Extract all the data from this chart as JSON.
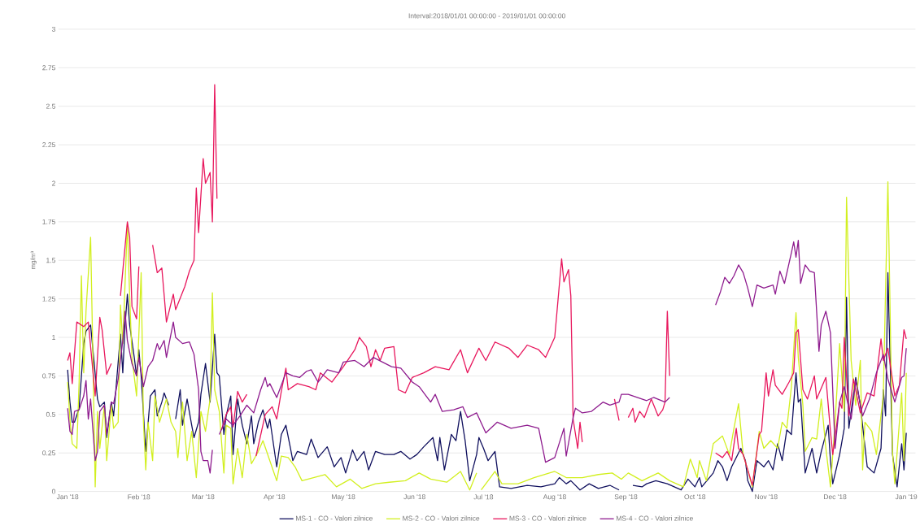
{
  "chart_data": {
    "type": "line",
    "title": "Interval:2018/01/01 00:00:00 - 2019/01/01 00:00:00",
    "ylabel": "mg/m³",
    "xlim": [
      "2017-12-28",
      "2019-01-05"
    ],
    "ylim": [
      0,
      3
    ],
    "xticks": [
      {
        "value": "2018-01-01",
        "label": "Jan '18"
      },
      {
        "value": "2018-02-01",
        "label": "Feb '18"
      },
      {
        "value": "2018-03-01",
        "label": "Mar '18"
      },
      {
        "value": "2018-04-01",
        "label": "Apr '18"
      },
      {
        "value": "2018-05-01",
        "label": "May '18"
      },
      {
        "value": "2018-06-01",
        "label": "Jun '18"
      },
      {
        "value": "2018-07-01",
        "label": "Jul '18"
      },
      {
        "value": "2018-08-01",
        "label": "Aug '18"
      },
      {
        "value": "2018-09-01",
        "label": "Sep '18"
      },
      {
        "value": "2018-10-01",
        "label": "Oct '18"
      },
      {
        "value": "2018-11-01",
        "label": "Nov '18"
      },
      {
        "value": "2018-12-01",
        "label": "Dec '18"
      },
      {
        "value": "2019-01-01",
        "label": "Jan '19"
      }
    ],
    "yticks": [
      0,
      0.25,
      0.5,
      0.75,
      1,
      1.25,
      1.5,
      1.75,
      2,
      2.25,
      2.5,
      2.75,
      3
    ],
    "grid": "y",
    "legend": "bottom",
    "series": [
      {
        "name": "MS-1 - CO - Valori zilnice",
        "color": "#10105e",
        "x": [
          "2018-01-01",
          "2018-01-02",
          "2018-01-03",
          "2018-01-04",
          "2018-01-06",
          "2018-01-08",
          "2018-01-09",
          "2018-01-11",
          "2018-01-14",
          "2018-01-15",
          "2018-01-17",
          "2018-01-18",
          "2018-01-20",
          "2018-01-21",
          "2018-01-22",
          "2018-01-24",
          "2018-01-25",
          "2018-01-26",
          "2018-01-27",
          "2018-01-28",
          "2018-01-30",
          "2018-01-31",
          "2018-02-01",
          "2018-02-02",
          "2018-02-04",
          "2018-02-06",
          "2018-02-08",
          "2018-02-09",
          "2018-02-11",
          "2018-02-12",
          "2018-02-14",
          "2018-02-15",
          "2018-02-17",
          "2018-02-19",
          "2018-02-20",
          "2018-02-22",
          "2018-02-24",
          "2018-02-25",
          "2018-02-27",
          "2018-02-28",
          "2018-03-02",
          "2018-03-04",
          "2018-03-06",
          "2018-03-07",
          "2018-03-08",
          "2018-03-10",
          "2018-03-11",
          "2018-03-13",
          "2018-03-14",
          "2018-03-16",
          "2018-03-18",
          "2018-03-20",
          "2018-03-22",
          "2018-03-23",
          "2018-03-25",
          "2018-03-27",
          "2018-03-29",
          "2018-03-30",
          "2018-04-02",
          "2018-04-04",
          "2018-04-06",
          "2018-04-08",
          "2018-04-09",
          "2018-04-11",
          "2018-04-15",
          "2018-04-17",
          "2018-04-20",
          "2018-04-24",
          "2018-04-27",
          "2018-04-30",
          "2018-05-02",
          "2018-05-05",
          "2018-05-07",
          "2018-05-10",
          "2018-05-12",
          "2018-05-15",
          "2018-05-19",
          "2018-05-23",
          "2018-05-26",
          "2018-05-30",
          "2018-06-02",
          "2018-06-05",
          "2018-06-09",
          "2018-06-11",
          "2018-06-12",
          "2018-06-14",
          "2018-06-17",
          "2018-06-19",
          "2018-06-21",
          "2018-06-23",
          "2018-06-25",
          "2018-06-28",
          "2018-06-29",
          "2018-07-01",
          "2018-07-03",
          "2018-07-06",
          "2018-07-08",
          "2018-07-13",
          "2018-07-20",
          "2018-07-26",
          "2018-08-01",
          "2018-08-03",
          "2018-08-06",
          "2018-08-08",
          "2018-08-12",
          "2018-08-16",
          "2018-08-20",
          "2018-08-25",
          "2018-08-29",
          "2018-09-01",
          "2018-09-04",
          "2018-09-08",
          "2018-09-10",
          "2018-09-14",
          "2018-09-19",
          "2018-09-25",
          "2018-09-28",
          "2018-10-01",
          "2018-10-03",
          "2018-10-04",
          "2018-10-09",
          "2018-10-11",
          "2018-10-13",
          "2018-10-15",
          "2018-10-17",
          "2018-10-21",
          "2018-10-23",
          "2018-10-24",
          "2018-10-26",
          "2018-10-28",
          "2018-10-31",
          "2018-11-02",
          "2018-11-04",
          "2018-11-06",
          "2018-11-08",
          "2018-11-10",
          "2018-11-12",
          "2018-11-14",
          "2018-11-15",
          "2018-11-16",
          "2018-11-18",
          "2018-11-21",
          "2018-11-23",
          "2018-11-25",
          "2018-11-28",
          "2018-11-29",
          "2018-11-30",
          "2018-12-03",
          "2018-12-05",
          "2018-12-06",
          "2018-12-07",
          "2018-12-10",
          "2018-12-12",
          "2018-12-15",
          "2018-12-18",
          "2018-12-21",
          "2018-12-22",
          "2018-12-23",
          "2018-12-24",
          "2018-12-26",
          "2018-12-28",
          "2018-12-30",
          "2018-12-31",
          "2019-01-01"
        ],
        "values": [
          0.79,
          0.58,
          0.45,
          0.45,
          0.54,
          0.96,
          1.04,
          1.08,
          0.6,
          0.55,
          0.58,
          0.35,
          0.58,
          0.49,
          0.66,
          1.02,
          0.77,
          1.08,
          1.28,
          1.08,
          0.87,
          0.75,
          0.92,
          0.75,
          0.26,
          0.62,
          0.66,
          0.49,
          0.58,
          0.64,
          0.56,
          null,
          0.47,
          0.66,
          0.43,
          0.6,
          0.43,
          0.35,
          0.45,
          0.63,
          0.83,
          0.58,
          1.02,
          0.77,
          0.75,
          0.37,
          0.49,
          0.62,
          0.24,
          0.6,
          0.43,
          0.31,
          0.49,
          0.31,
          0.45,
          0.53,
          0.41,
          0.47,
          0.16,
          0.37,
          0.43,
          0.28,
          0.2,
          0.26,
          0.24,
          0.34,
          0.22,
          0.29,
          0.16,
          0.22,
          0.12,
          0.27,
          0.2,
          0.26,
          0.14,
          0.26,
          0.24,
          0.24,
          0.26,
          0.21,
          0.24,
          0.29,
          0.35,
          0.2,
          0.35,
          0.14,
          0.37,
          0.33,
          0.52,
          0.33,
          0.07,
          0.24,
          0.35,
          0.28,
          0.2,
          0.26,
          0.03,
          0.02,
          0.04,
          0.03,
          0.05,
          0.09,
          0.05,
          0.07,
          0.01,
          0.05,
          0.02,
          0.04,
          0.01,
          null,
          0.04,
          0.03,
          0.05,
          0.07,
          0.05,
          0.01,
          0.08,
          0.03,
          0.09,
          0.03,
          0.12,
          0.2,
          0.16,
          0.07,
          0.16,
          0.28,
          0.2,
          0.07,
          0,
          0.2,
          0.16,
          0.2,
          0.14,
          0.31,
          0.2,
          0.4,
          0.37,
          0.77,
          0.58,
          0.6,
          0.12,
          0.28,
          0.12,
          0.26,
          0.43,
          0.2,
          0.05,
          0.24,
          0.41,
          1.26,
          0.41,
          0.74,
          0.56,
          0.16,
          0.12,
          0.28,
          0.66,
          0.49,
          1.42,
          0.24,
          0.03,
          0.31,
          0.14,
          0.38
        ]
      },
      {
        "name": "MS-2 - CO - Valori zilnice",
        "color": "#d2ef1f",
        "x": [
          "2018-01-01",
          "2018-01-02",
          "2018-01-03",
          "2018-01-05",
          "2018-01-06",
          "2018-01-07",
          "2018-01-08",
          "2018-01-09",
          "2018-01-11",
          "2018-01-12",
          "2018-01-13",
          "2018-01-14",
          "2018-01-15",
          "2018-01-17",
          "2018-01-18",
          "2018-01-20",
          "2018-01-21",
          "2018-01-23",
          "2018-01-24",
          "2018-01-25",
          "2018-01-27",
          "2018-01-28",
          "2018-01-29",
          "2018-01-31",
          "2018-02-02",
          "2018-02-03",
          "2018-02-04",
          "2018-02-05",
          "2018-02-07",
          "2018-02-08",
          "2018-02-10",
          "2018-02-13",
          "2018-02-15",
          "2018-02-17",
          "2018-02-18",
          "2018-02-20",
          "2018-02-22",
          "2018-02-24",
          "2018-02-26",
          "2018-02-28",
          "2018-03-02",
          "2018-03-04",
          "2018-03-05",
          "2018-03-06",
          "2018-03-08",
          "2018-03-10",
          "2018-03-11",
          "2018-03-13",
          "2018-03-14",
          "2018-03-16",
          "2018-03-18",
          "2018-03-20",
          "2018-03-22",
          "2018-03-25",
          "2018-03-27",
          "2018-03-30",
          "2018-04-02",
          "2018-04-04",
          "2018-04-07",
          "2018-04-10",
          "2018-04-13",
          "2018-04-18",
          "2018-04-23",
          "2018-04-28",
          "2018-05-04",
          "2018-05-09",
          "2018-05-15",
          "2018-05-21",
          "2018-05-28",
          "2018-06-03",
          "2018-06-08",
          "2018-06-15",
          "2018-06-21",
          "2018-06-25",
          "2018-06-28",
          "2018-06-29",
          "2018-06-30",
          "2018-07-03",
          "2018-07-06",
          "2018-07-09",
          "2018-07-16",
          "2018-07-23",
          "2018-08-01",
          "2018-08-06",
          "2018-08-13",
          "2018-08-20",
          "2018-08-26",
          "2018-08-30",
          "2018-09-02",
          "2018-09-08",
          "2018-09-15",
          "2018-09-20",
          "2018-09-26",
          "2018-09-29",
          "2018-10-02",
          "2018-10-03",
          "2018-10-06",
          "2018-10-09",
          "2018-10-13",
          "2018-10-16",
          "2018-10-18",
          "2018-10-20",
          "2018-10-22",
          "2018-10-24",
          "2018-10-26",
          "2018-10-29",
          "2018-10-31",
          "2018-11-03",
          "2018-11-06",
          "2018-11-08",
          "2018-11-10",
          "2018-11-12",
          "2018-11-14",
          "2018-11-15",
          "2018-11-17",
          "2018-11-18",
          "2018-11-21",
          "2018-11-23",
          "2018-11-25",
          "2018-11-27",
          "2018-11-29",
          "2018-12-01",
          "2018-12-03",
          "2018-12-05",
          "2018-12-06",
          "2018-12-08",
          "2018-12-10",
          "2018-12-12",
          "2018-12-13",
          "2018-12-14",
          "2018-12-17",
          "2018-12-19",
          "2018-12-22",
          "2018-12-24",
          "2018-12-26",
          "2018-12-27",
          "2018-12-29",
          "2018-12-30",
          "2018-12-31",
          "2019-01-01"
        ],
        "values": [
          0.71,
          0.47,
          0.31,
          0.28,
          0.71,
          1.4,
          0.77,
          1.17,
          1.65,
          0.87,
          0.03,
          0.52,
          0.28,
          0.56,
          0.2,
          0.56,
          0.41,
          0.45,
          1.21,
          0.96,
          1.74,
          1.27,
          0.87,
          0.62,
          1.42,
          0.45,
          0.14,
          0.45,
          0.2,
          0.62,
          0.45,
          0.6,
          0.45,
          0.39,
          0.22,
          0.58,
          0.2,
          0.39,
          0.09,
          0.52,
          0.39,
          0.6,
          1.29,
          0.66,
          0.52,
          0.12,
          0.43,
          0.41,
          0.05,
          0.28,
          0.09,
          0.37,
          0.18,
          0.26,
          0.33,
          0.2,
          0.07,
          0.23,
          0.22,
          0.16,
          0.07,
          0.09,
          0.11,
          0.03,
          0.08,
          0.02,
          0.05,
          0.06,
          0.07,
          0.12,
          0.08,
          0.06,
          0.13,
          0.01,
          0.12,
          null,
          0.01,
          0.07,
          0.13,
          0.05,
          0.05,
          0.09,
          0.13,
          0.09,
          0.09,
          0.11,
          0.12,
          0.08,
          0.12,
          0.07,
          0.12,
          0.07,
          0.03,
          0.21,
          0.09,
          0.2,
          0.07,
          0.31,
          0.36,
          0.24,
          0.41,
          0.57,
          0.24,
          0.14,
          0.03,
          0.39,
          0.28,
          0.33,
          0.28,
          0.45,
          0.41,
          0.68,
          1.16,
          0.87,
          0.56,
          0.26,
          0.35,
          0.34,
          0.6,
          0.28,
          0.03,
          0.45,
          0.96,
          0.52,
          1.91,
          0.85,
          0.56,
          0.85,
          0.14,
          0.45,
          0.39,
          0.24,
          0.62,
          2.01,
          0.26,
          0.05,
          0.45,
          0.64,
          0.2,
          0.77
        ]
      },
      {
        "name": "MS-3 - CO - Valori zilnice",
        "color": "#e8175d",
        "x": [
          "2018-01-01",
          "2018-01-02",
          "2018-01-03",
          "2018-01-05",
          "2018-01-08",
          "2018-01-10",
          "2018-01-13",
          "2018-01-15",
          "2018-01-16",
          "2018-01-18",
          "2018-01-20",
          "2018-01-22",
          "2018-01-24",
          "2018-01-27",
          "2018-01-28",
          "2018-01-29",
          "2018-01-31",
          "2018-02-01",
          "2018-02-04",
          "2018-02-07",
          "2018-02-09",
          "2018-02-11",
          "2018-02-13",
          "2018-02-16",
          "2018-02-17",
          "2018-02-21",
          "2018-02-23",
          "2018-02-25",
          "2018-02-26",
          "2018-02-27",
          "2018-03-01",
          "2018-03-02",
          "2018-03-04",
          "2018-03-05",
          "2018-03-06",
          "2018-03-07",
          "2018-03-08",
          "2018-03-09",
          "2018-03-11",
          "2018-03-13",
          "2018-03-14",
          "2018-03-16",
          "2018-03-18",
          "2018-03-20",
          "2018-03-22",
          "2018-03-24",
          "2018-03-28",
          "2018-03-31",
          "2018-04-02",
          "2018-04-04",
          "2018-04-06",
          "2018-04-07",
          "2018-04-11",
          "2018-04-16",
          "2018-04-19",
          "2018-04-21",
          "2018-04-26",
          "2018-05-01",
          "2018-05-06",
          "2018-05-08",
          "2018-05-11",
          "2018-05-13",
          "2018-05-15",
          "2018-05-17",
          "2018-05-19",
          "2018-05-23",
          "2018-05-25",
          "2018-05-28",
          "2018-05-31",
          "2018-06-05",
          "2018-06-10",
          "2018-06-16",
          "2018-06-21",
          "2018-06-24",
          "2018-06-29",
          "2018-07-02",
          "2018-07-06",
          "2018-07-12",
          "2018-07-16",
          "2018-07-20",
          "2018-07-25",
          "2018-07-28",
          "2018-08-01",
          "2018-08-04",
          "2018-08-05",
          "2018-08-07",
          "2018-08-08",
          "2018-08-09",
          "2018-08-11",
          "2018-08-12",
          "2018-08-13",
          "2018-08-20",
          "2018-08-27",
          "2018-08-29",
          "2018-08-31",
          "2018-09-02",
          "2018-09-04",
          "2018-09-05",
          "2018-09-07",
          "2018-09-09",
          "2018-09-12",
          "2018-09-15",
          "2018-09-17",
          "2018-09-18",
          "2018-09-19",
          "2018-09-20",
          "2018-09-30",
          "2018-10-10",
          "2018-10-13",
          "2018-10-15",
          "2018-10-17",
          "2018-10-19",
          "2018-10-20",
          "2018-10-22",
          "2018-10-26",
          "2018-10-29",
          "2018-10-30",
          "2018-11-01",
          "2018-11-02",
          "2018-11-04",
          "2018-11-05",
          "2018-11-08",
          "2018-11-11",
          "2018-11-13",
          "2018-11-14",
          "2018-11-15",
          "2018-11-17",
          "2018-11-19",
          "2018-11-22",
          "2018-11-23",
          "2018-11-27",
          "2018-11-29",
          "2018-11-30",
          "2018-12-03",
          "2018-12-04",
          "2018-12-05",
          "2018-12-07",
          "2018-12-09",
          "2018-12-12",
          "2018-12-15",
          "2018-12-18",
          "2018-12-21",
          "2018-12-22",
          "2018-12-24",
          "2018-12-27",
          "2018-12-29",
          "2018-12-30",
          "2018-12-31",
          "2019-01-01"
        ],
        "values": [
          0.85,
          0.9,
          0.7,
          1.1,
          1.07,
          1.1,
          0.62,
          1.13,
          1.05,
          0.76,
          0.83,
          null,
          1.27,
          1.75,
          1.65,
          1.2,
          1.12,
          1.46,
          null,
          1.6,
          1.42,
          1.45,
          1.1,
          1.28,
          1.18,
          1.33,
          1.43,
          1.5,
          1.97,
          1.68,
          2.16,
          2.0,
          2.07,
          1.75,
          2.64,
          1.9,
          null,
          0.4,
          0.5,
          0.55,
          0.42,
          0.65,
          0.58,
          0.63,
          null,
          0.23,
          0.5,
          0.55,
          0.47,
          0.65,
          0.8,
          0.66,
          0.7,
          0.68,
          0.66,
          0.77,
          0.71,
          0.81,
          0.92,
          1.0,
          0.94,
          0.81,
          0.92,
          0.85,
          0.93,
          0.94,
          0.66,
          0.64,
          0.74,
          0.77,
          0.81,
          0.79,
          0.92,
          0.77,
          0.93,
          0.85,
          0.97,
          0.93,
          0.87,
          0.95,
          0.92,
          0.87,
          1.0,
          1.51,
          1.36,
          1.44,
          1.27,
          0.47,
          0.28,
          0.45,
          0.32,
          null,
          0.6,
          0.46,
          null,
          0.48,
          0.54,
          0.45,
          0.52,
          0.48,
          0.6,
          0.49,
          0.53,
          0.58,
          1.17,
          0.75,
          null,
          0.25,
          0.22,
          0.26,
          0.2,
          0.41,
          0.28,
          0.24,
          0.04,
          0.37,
          0.39,
          0.77,
          0.62,
          0.79,
          0.69,
          0.63,
          0.71,
          0.77,
          1.03,
          1.05,
          0.66,
          0.6,
          0.75,
          0.6,
          0.74,
          0.39,
          0.24,
          0.58,
          0.54,
          1.0,
          0.49,
          0.73,
          0.51,
          0.64,
          0.62,
          0.99,
          0.85,
          0.93,
          0.62,
          0.69,
          0.87,
          1.05,
          0.99
        ]
      },
      {
        "name": "MS-4 - CO - Valori zilnice",
        "color": "#8e1b8e",
        "x": [
          "2018-01-01",
          "2018-01-02",
          "2018-01-03",
          "2018-01-04",
          "2018-01-06",
          "2018-01-08",
          "2018-01-09",
          "2018-01-10",
          "2018-01-11",
          "2018-01-13",
          "2018-01-14",
          "2018-01-15",
          "2018-01-17",
          "2018-01-18",
          "2018-01-20",
          "2018-01-21",
          "2018-01-23",
          "2018-01-25",
          "2018-01-26",
          "2018-01-27",
          "2018-01-29",
          "2018-01-31",
          "2018-02-01",
          "2018-02-03",
          "2018-02-05",
          "2018-02-07",
          "2018-02-09",
          "2018-02-10",
          "2018-02-12",
          "2018-02-13",
          "2018-02-16",
          "2018-02-17",
          "2018-02-20",
          "2018-02-23",
          "2018-02-25",
          "2018-02-27",
          "2018-02-28",
          "2018-03-01",
          "2018-03-03",
          "2018-03-04",
          "2018-03-05",
          "2018-03-07",
          "2018-03-08",
          "2018-03-11",
          "2018-03-14",
          "2018-03-17",
          "2018-03-20",
          "2018-03-23",
          "2018-03-26",
          "2018-03-28",
          "2018-03-29",
          "2018-03-30",
          "2018-04-02",
          "2018-04-06",
          "2018-04-09",
          "2018-04-12",
          "2018-04-15",
          "2018-04-17",
          "2018-04-20",
          "2018-04-24",
          "2018-04-29",
          "2018-05-01",
          "2018-05-06",
          "2018-05-10",
          "2018-05-14",
          "2018-05-18",
          "2018-05-22",
          "2018-05-26",
          "2018-05-31",
          "2018-06-03",
          "2018-06-08",
          "2018-06-10",
          "2018-06-13",
          "2018-06-18",
          "2018-06-22",
          "2018-06-24",
          "2018-06-28",
          "2018-07-02",
          "2018-07-07",
          "2018-07-13",
          "2018-07-20",
          "2018-07-25",
          "2018-07-28",
          "2018-08-01",
          "2018-08-05",
          "2018-08-06",
          "2018-08-09",
          "2018-08-10",
          "2018-08-13",
          "2018-08-17",
          "2018-08-22",
          "2018-08-25",
          "2018-08-29",
          "2018-08-30",
          "2018-09-02",
          "2018-09-06",
          "2018-09-10",
          "2018-09-13",
          "2018-09-18",
          "2018-09-20",
          "2018-09-28",
          "2018-10-10",
          "2018-10-12",
          "2018-10-14",
          "2018-10-16",
          "2018-10-18",
          "2018-10-20",
          "2018-10-22",
          "2018-10-24",
          "2018-10-26",
          "2018-10-28",
          "2018-10-31",
          "2018-11-04",
          "2018-11-05",
          "2018-11-07",
          "2018-11-09",
          "2018-11-12",
          "2018-11-13",
          "2018-11-14",
          "2018-11-15",
          "2018-11-16",
          "2018-11-18",
          "2018-11-20",
          "2018-11-22",
          "2018-11-24",
          "2018-11-25",
          "2018-11-27",
          "2018-11-29",
          "2018-12-01",
          "2018-12-03",
          "2018-12-05",
          "2018-12-08",
          "2018-12-10",
          "2018-12-13",
          "2018-12-16",
          "2018-12-19",
          "2018-12-22",
          "2018-12-24",
          "2018-12-27",
          "2018-12-30",
          "2018-12-31",
          "2019-01-01"
        ],
        "values": [
          0.54,
          0.39,
          0.37,
          0.52,
          0.53,
          0.62,
          0.72,
          0.47,
          0.6,
          0.2,
          0.26,
          0.52,
          0.56,
          0.37,
          0.58,
          0.57,
          0.73,
          0.98,
          1.17,
          0.98,
          0.83,
          0.75,
          0.87,
          0.68,
          0.81,
          0.85,
          0.96,
          0.92,
          0.98,
          0.87,
          1.1,
          1.0,
          0.96,
          0.97,
          0.89,
          0.66,
          0.26,
          0.2,
          0.2,
          0.12,
          0.27,
          null,
          0.37,
          0.47,
          0.43,
          0.49,
          0.56,
          0.51,
          0.66,
          0.74,
          0.68,
          0.7,
          0.61,
          0.77,
          0.75,
          0.74,
          0.78,
          0.79,
          0.71,
          0.79,
          0.77,
          0.84,
          0.85,
          0.81,
          0.87,
          0.84,
          0.81,
          0.8,
          0.71,
          0.68,
          0.58,
          0.63,
          0.52,
          0.53,
          0.55,
          0.48,
          0.51,
          0.38,
          0.45,
          0.41,
          0.43,
          0.41,
          0.19,
          0.22,
          0.41,
          0.23,
          0.48,
          0.54,
          0.51,
          0.52,
          0.58,
          0.56,
          0.58,
          0.63,
          0.63,
          0.61,
          0.59,
          0.61,
          0.58,
          0.61,
          null,
          1.21,
          1.29,
          1.39,
          1.35,
          1.4,
          1.47,
          1.42,
          1.32,
          1.2,
          1.34,
          1.32,
          1.34,
          1.28,
          1.43,
          1.35,
          1.55,
          1.62,
          1.52,
          1.63,
          1.35,
          1.47,
          1.43,
          1.42,
          0.91,
          1.08,
          1.17,
          1.03,
          0.28,
          0.58,
          0.68,
          0.47,
          0.72,
          0.49,
          0.6,
          0.77,
          0.89,
          0.73,
          0.58,
          0.74,
          0.75,
          0.93
        ]
      }
    ]
  }
}
